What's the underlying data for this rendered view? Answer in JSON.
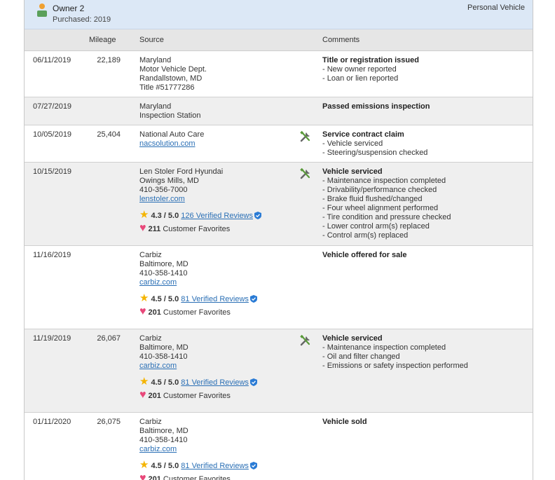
{
  "header": {
    "owner": "Owner 2",
    "purchased": "Purchased: 2019",
    "vehicle_type": "Personal Vehicle"
  },
  "table": {
    "columns": {
      "mileage": "Mileage",
      "source": "Source",
      "comments": "Comments"
    },
    "rows": [
      {
        "date": "06/11/2019",
        "mileage": "22,189",
        "source": [
          "Maryland",
          "Motor Vehicle Dept.",
          "Randallstown, MD",
          "Title #51777286"
        ],
        "comment_title": "Title or registration issued",
        "comment_items": [
          "- New owner reported",
          "- Loan or lien reported"
        ]
      },
      {
        "date": "07/27/2019",
        "source": [
          "Maryland",
          "Inspection Station"
        ],
        "comment_title": "Passed emissions inspection"
      },
      {
        "date": "10/05/2019",
        "mileage": "25,404",
        "source": [
          "National Auto Care"
        ],
        "link": "nacsolution.com",
        "service": true,
        "comment_title": "Service contract claim",
        "comment_items": [
          "- Vehicle serviced",
          "- Steering/suspension checked"
        ]
      },
      {
        "date": "10/15/2019",
        "source": [
          "Len Stoler Ford Hyundai",
          "Owings Mills, MD",
          "410-356-7000"
        ],
        "link": "lenstoler.com",
        "rating": {
          "score": "4.3 / 5.0",
          "reviews": "126 Verified Reviews",
          "favorites": "211",
          "favorites_label": "Customer Favorites"
        },
        "service": true,
        "comment_title": "Vehicle serviced",
        "comment_items": [
          "- Maintenance inspection completed",
          "- Drivability/performance checked",
          "- Brake fluid flushed/changed",
          "- Four wheel alignment performed",
          "- Tire condition and pressure checked",
          "- Lower control arm(s) replaced",
          "- Control arm(s) replaced"
        ]
      },
      {
        "date": "11/16/2019",
        "source": [
          "Carbiz",
          "Baltimore, MD",
          "410-358-1410"
        ],
        "link": "carbiz.com",
        "rating": {
          "score": "4.5 / 5.0",
          "reviews": "81 Verified Reviews",
          "favorites": "201",
          "favorites_label": "Customer Favorites"
        },
        "comment_title": "Vehicle offered for sale"
      },
      {
        "date": "11/19/2019",
        "mileage": "26,067",
        "source": [
          "Carbiz",
          "Baltimore, MD",
          "410-358-1410"
        ],
        "link": "carbiz.com",
        "rating": {
          "score": "4.5 / 5.0",
          "reviews": "81 Verified Reviews",
          "favorites": "201",
          "favorites_label": "Customer Favorites"
        },
        "service": true,
        "comment_title": "Vehicle serviced",
        "comment_items": [
          "- Maintenance inspection completed",
          "- Oil and filter changed",
          "- Emissions or safety inspection performed"
        ]
      },
      {
        "date": "01/11/2020",
        "mileage": "26,075",
        "source": [
          "Carbiz",
          "Baltimore, MD",
          "410-358-1410"
        ],
        "link": "carbiz.com",
        "rating": {
          "score": "4.5 / 5.0",
          "reviews": "81 Verified Reviews",
          "favorites": "201",
          "favorites_label": "Customer Favorites"
        },
        "comment_title": "Vehicle sold"
      }
    ]
  }
}
